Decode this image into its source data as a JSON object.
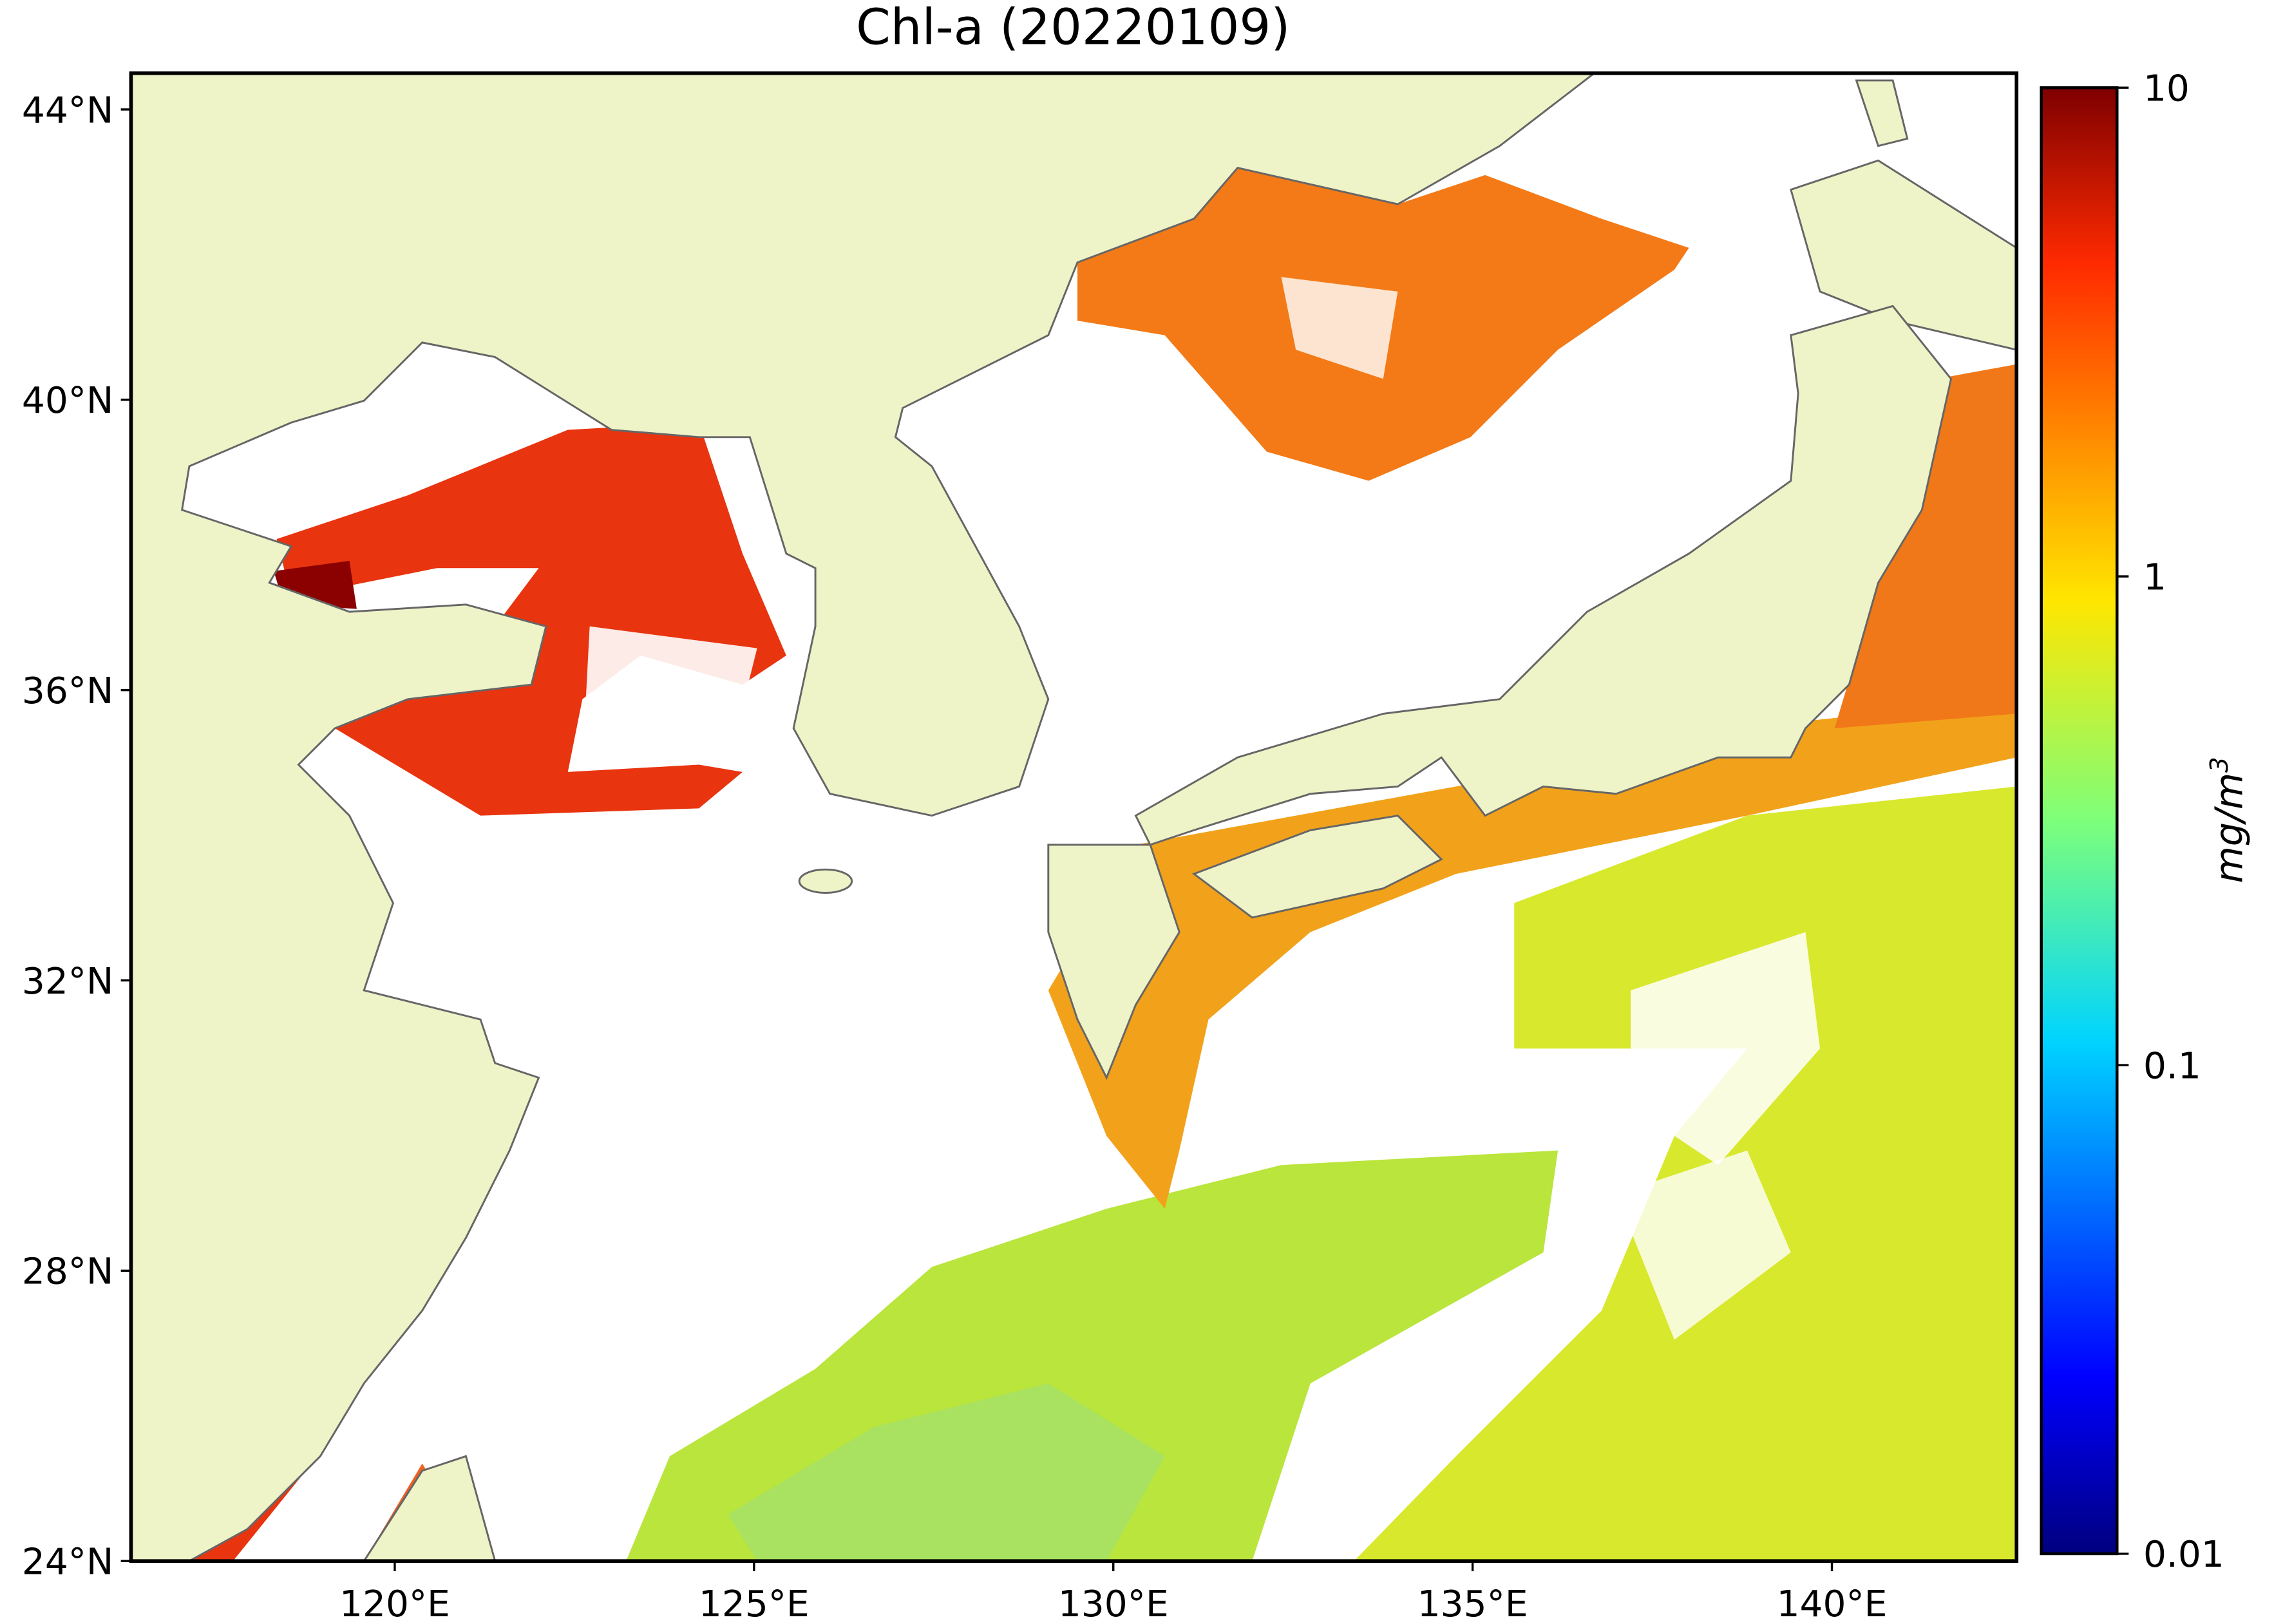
{
  "map": {
    "title": "Chl-a (20220109)",
    "xlim": [
      116.33,
      142.57
    ],
    "ylim": [
      24,
      44.5
    ],
    "xticks": [
      {
        "value": 120,
        "label": "120°E"
      },
      {
        "value": 125,
        "label": "125°E"
      },
      {
        "value": 130,
        "label": "130°E"
      },
      {
        "value": 135,
        "label": "135°E"
      },
      {
        "value": 140,
        "label": "140°E"
      }
    ],
    "yticks": [
      {
        "value": 24,
        "label": "24°N"
      },
      {
        "value": 28,
        "label": "28°N"
      },
      {
        "value": 32,
        "label": "32°N"
      },
      {
        "value": 36,
        "label": "36°N"
      },
      {
        "value": 40,
        "label": "40°N"
      },
      {
        "value": 44,
        "label": "44°N"
      }
    ],
    "colorbar": {
      "scale": "log",
      "lim": [
        0.01,
        10
      ],
      "ticks": [
        0.01,
        0.1,
        1,
        10
      ],
      "label": "mg/m",
      "label_sup": "3"
    }
  }
}
